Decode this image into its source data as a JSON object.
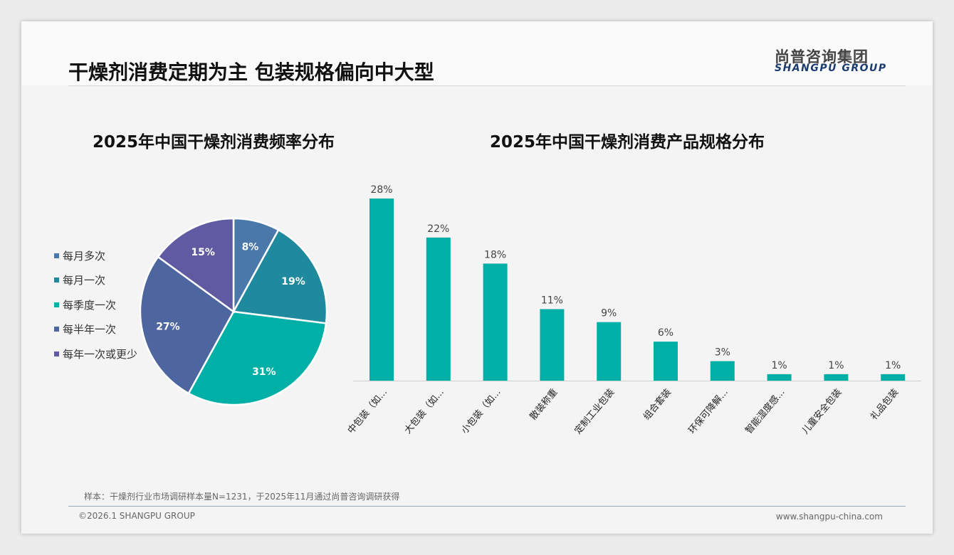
{
  "header": {
    "title": "干燥剂消费定期为主 包装规格偏向中大型",
    "logo_cn": "尚普咨询集团",
    "logo_en": "SHANGPU GROUP"
  },
  "footer": {
    "note": "样本：干燥剂行业市场调研样本量N=1231，于2025年11月通过尚普咨询调研获得",
    "copyright": "©2026.1 SHANGPU GROUP",
    "url": "www.shangpu-china.com"
  },
  "chart_data": [
    {
      "type": "pie",
      "title": "2025年中国干燥剂消费频率分布",
      "legend_position": "left",
      "categories": [
        "每月多次",
        "每月一次",
        "每季度一次",
        "每半年一次",
        "每年一次或更少"
      ],
      "values": [
        8,
        19,
        31,
        27,
        15
      ],
      "labels": [
        "8%",
        "19%",
        "31%",
        "27%",
        "15%"
      ],
      "colors": [
        "#4a78aa",
        "#1f8a9e",
        "#00b0a6",
        "#4e66a0",
        "#5f5aa2"
      ]
    },
    {
      "type": "bar",
      "title": "2025年中国干燥剂消费产品规格分布",
      "categories": [
        "中包装（如...",
        "大包装（如...",
        "小包装（如...",
        "散装称重",
        "定制工业包装",
        "组合套装",
        "环保可降解...",
        "智能湿度感...",
        "儿童安全包装",
        "礼品包装"
      ],
      "values": [
        28,
        22,
        18,
        11,
        9,
        6,
        3,
        1,
        1,
        1
      ],
      "labels": [
        "28%",
        "22%",
        "18%",
        "11%",
        "9%",
        "6%",
        "3%",
        "1%",
        "1%",
        "1%"
      ],
      "color": "#00b0a6",
      "ylim": [
        0,
        28
      ],
      "grid": false
    }
  ]
}
